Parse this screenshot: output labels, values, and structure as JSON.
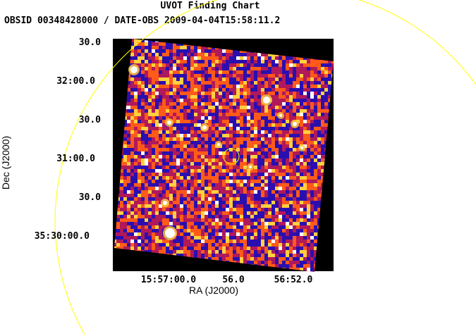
{
  "chart_data": {
    "type": "heatmap",
    "title": "UVOT Finding Chart",
    "subtitle": "OBSID 00348428000 / DATE-OBS 2009-04-04T15:58:11.2",
    "xlabel": "RA (J2000)",
    "ylabel": "Dec (J2000)",
    "x_ticks": [
      "15:57:00.0",
      "56.0",
      "56:52.0"
    ],
    "y_ticks": [
      "30.0",
      "32:00.0",
      "30.0",
      "31:00.0",
      "30.0",
      "35:30:00.0"
    ],
    "colormap": [
      "#000000",
      "#2a0fb0",
      "#b0195a",
      "#ff5a1a",
      "#ffd040",
      "#ffffff"
    ],
    "circle_color": "#ffff00",
    "image_frame_color": "#000000",
    "bright_sources": 11,
    "target_circle": true,
    "outer_arc": true
  }
}
